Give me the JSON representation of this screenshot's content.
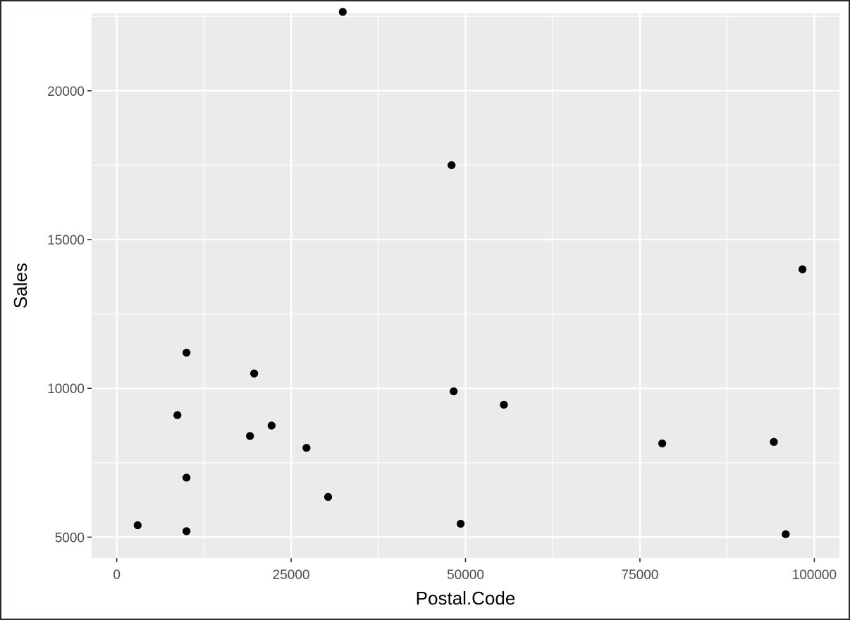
{
  "chart_data": {
    "type": "scatter",
    "title": "",
    "xlabel": "Postal.Code",
    "ylabel": "Sales",
    "xlim": [
      -3600,
      103600
    ],
    "ylim": [
      4300,
      22600
    ],
    "xticks": [
      0,
      25000,
      50000,
      75000,
      100000
    ],
    "xtick_labels": [
      "0",
      "25000",
      "50000",
      "75000",
      "100000"
    ],
    "yticks": [
      5000,
      10000,
      15000,
      20000
    ],
    "ytick_labels": [
      "5000",
      "10000",
      "15000",
      "20000"
    ],
    "grid": true,
    "points": [
      {
        "x": 3000,
        "y": 5400
      },
      {
        "x": 8700,
        "y": 9100
      },
      {
        "x": 10000,
        "y": 11200
      },
      {
        "x": 10000,
        "y": 7000
      },
      {
        "x": 10000,
        "y": 5200
      },
      {
        "x": 19100,
        "y": 8400
      },
      {
        "x": 19700,
        "y": 10500
      },
      {
        "x": 22200,
        "y": 8750
      },
      {
        "x": 27200,
        "y": 8000
      },
      {
        "x": 30300,
        "y": 6350
      },
      {
        "x": 32400,
        "y": 22650
      },
      {
        "x": 48000,
        "y": 17500
      },
      {
        "x": 48300,
        "y": 9900
      },
      {
        "x": 49300,
        "y": 5450
      },
      {
        "x": 55500,
        "y": 9450
      },
      {
        "x": 78200,
        "y": 8150
      },
      {
        "x": 94200,
        "y": 8200
      },
      {
        "x": 95900,
        "y": 5100
      },
      {
        "x": 98300,
        "y": 14000
      }
    ]
  },
  "colors": {
    "panel_bg": "#ebebeb",
    "grid": "#ffffff",
    "point": "#000000",
    "tick_text": "#4d4d4d",
    "tick_mark": "#333333"
  }
}
